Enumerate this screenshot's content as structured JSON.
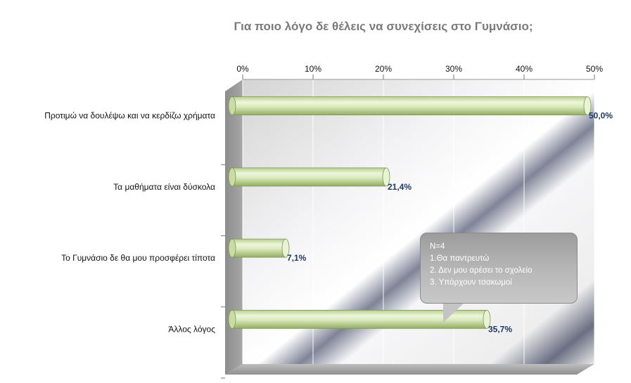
{
  "chart_data": {
    "type": "bar",
    "orientation": "horizontal",
    "title": "Για ποιο λόγο δε θέλεις να συνεχίσεις στο Γυμνάσιο;",
    "categories": [
      "Προτιμώ να δουλέψω και να κερδίζω χρήματα",
      "Τα μαθήματα είναι δύσκολα",
      "Το Γυμνάσιο δε θα μου προσφέρει τίποτα",
      "Άλλος λόγος"
    ],
    "values": [
      50.0,
      21.4,
      7.1,
      35.7
    ],
    "data_labels": [
      "50,0%",
      "21,4%",
      "7,1%",
      "35,7%"
    ],
    "x_ticks": [
      "0%",
      "10%",
      "20%",
      "30%",
      "40%",
      "50%"
    ],
    "xlim": [
      0,
      50
    ],
    "axis_position": "top",
    "bar_color": "#d6e8b4",
    "label_color": "#1f3864",
    "annotation": {
      "lines": [
        "N=4",
        "1.Θα παντρευτώ",
        "2. Δεν μου αρέσει το σχολείο",
        "3. Υπάρχουν τσακωμοί"
      ]
    }
  }
}
